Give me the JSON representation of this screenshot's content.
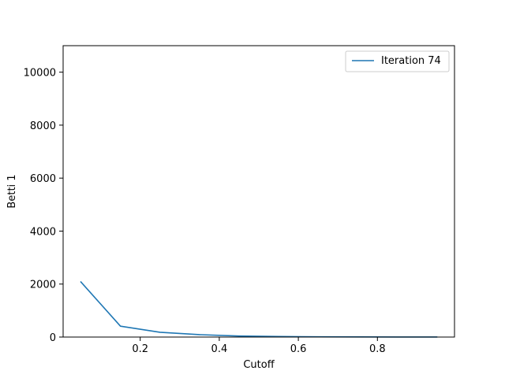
{
  "chart_data": {
    "type": "line",
    "title": "",
    "xlabel": "Cutoff",
    "ylabel": "Betti 1",
    "xlim": [
      0.005,
      0.995
    ],
    "ylim": [
      0,
      11000
    ],
    "xticks": [
      0.2,
      0.4,
      0.6,
      0.8
    ],
    "xtick_labels": [
      "0.2",
      "0.4",
      "0.6",
      "0.8"
    ],
    "yticks": [
      0,
      2000,
      4000,
      6000,
      8000,
      10000
    ],
    "ytick_labels": [
      "0",
      "2000",
      "4000",
      "6000",
      "8000",
      "10000"
    ],
    "grid": false,
    "legend_position": "top-right",
    "series": [
      {
        "name": "Iteration 74",
        "color": "#1f77b4",
        "x": [
          0.05,
          0.15,
          0.25,
          0.35,
          0.45,
          0.55,
          0.65,
          0.75,
          0.85,
          0.95
        ],
        "y": [
          2080,
          410,
          180,
          90,
          40,
          20,
          10,
          5,
          2,
          1
        ]
      }
    ]
  }
}
